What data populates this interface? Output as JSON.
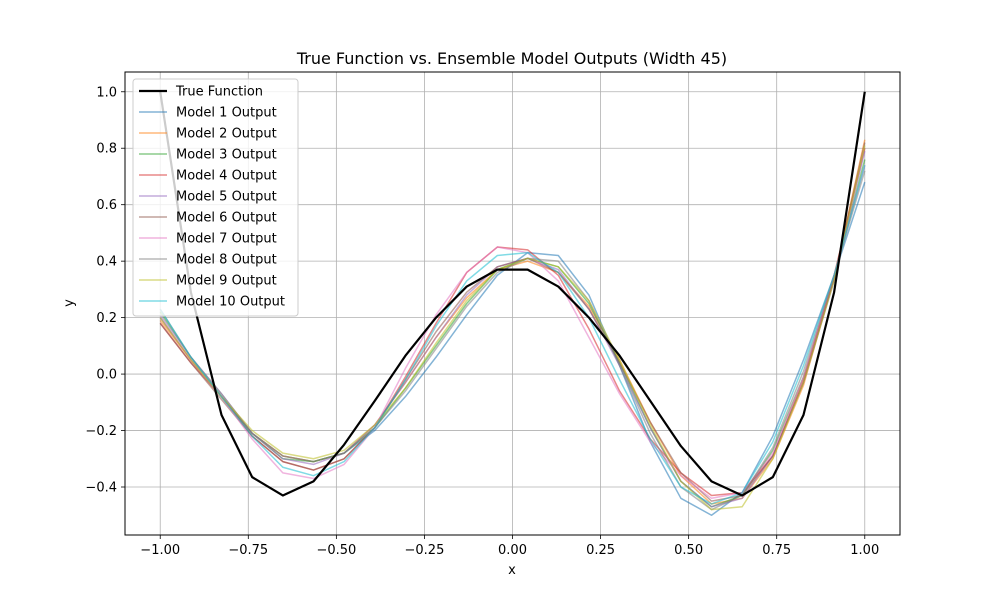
{
  "chart_data": {
    "type": "line",
    "title": "True Function vs. Ensemble Model Outputs (Width 45)",
    "xlabel": "x",
    "ylabel": "y",
    "xlim": [
      -1.1,
      1.1
    ],
    "ylim": [
      -0.57,
      1.07
    ],
    "xticks": [
      -1.0,
      -0.75,
      -0.5,
      -0.25,
      0.0,
      0.25,
      0.5,
      0.75,
      1.0
    ],
    "xtick_labels": [
      "−1.00",
      "−0.75",
      "−0.50",
      "−0.25",
      "0.00",
      "0.25",
      "0.50",
      "0.75",
      "1.00"
    ],
    "yticks": [
      -0.4,
      -0.2,
      0.0,
      0.2,
      0.4,
      0.6,
      0.8,
      1.0
    ],
    "ytick_labels": [
      "−0.4",
      "−0.2",
      "0.0",
      "0.2",
      "0.4",
      "0.6",
      "0.8",
      "1.0"
    ],
    "grid": true,
    "legend_position": "upper-left",
    "x": [
      -1.0,
      -0.913,
      -0.826,
      -0.739,
      -0.652,
      -0.565,
      -0.478,
      -0.391,
      -0.304,
      -0.217,
      -0.13,
      -0.043,
      0.043,
      0.13,
      0.217,
      0.304,
      0.391,
      0.478,
      0.565,
      0.652,
      0.739,
      0.826,
      0.913,
      1.0
    ],
    "series": [
      {
        "name": "True Function",
        "color": "#000000",
        "width": 2.2,
        "alpha": 1.0,
        "values": [
          1.0,
          0.29,
          -0.145,
          -0.365,
          -0.43,
          -0.38,
          -0.25,
          -0.095,
          0.065,
          0.2,
          0.31,
          0.37,
          0.37,
          0.31,
          0.2,
          0.065,
          -0.095,
          -0.255,
          -0.38,
          -0.43,
          -0.365,
          -0.145,
          0.29,
          1.0
        ]
      },
      {
        "name": "Model 1 Output",
        "color": "#1f77b4",
        "width": 1.5,
        "alpha": 0.55,
        "values": [
          0.2,
          0.05,
          -0.08,
          -0.21,
          -0.29,
          -0.31,
          -0.28,
          -0.2,
          -0.08,
          0.06,
          0.21,
          0.35,
          0.43,
          0.42,
          0.28,
          0.03,
          -0.24,
          -0.44,
          -0.5,
          -0.42,
          -0.22,
          0.05,
          0.35,
          0.68
        ]
      },
      {
        "name": "Model 2 Output",
        "color": "#ff7f0e",
        "width": 1.5,
        "alpha": 0.55,
        "values": [
          0.19,
          0.05,
          -0.08,
          -0.21,
          -0.29,
          -0.31,
          -0.28,
          -0.18,
          -0.03,
          0.13,
          0.27,
          0.37,
          0.4,
          0.36,
          0.24,
          0.05,
          -0.17,
          -0.36,
          -0.46,
          -0.44,
          -0.3,
          -0.04,
          0.34,
          0.83
        ]
      },
      {
        "name": "Model 3 Output",
        "color": "#2ca02c",
        "width": 1.5,
        "alpha": 0.55,
        "values": [
          0.22,
          0.06,
          -0.08,
          -0.21,
          -0.3,
          -0.31,
          -0.28,
          -0.19,
          -0.05,
          0.1,
          0.25,
          0.37,
          0.41,
          0.38,
          0.25,
          0.04,
          -0.19,
          -0.38,
          -0.47,
          -0.43,
          -0.27,
          -0.01,
          0.34,
          0.76
        ]
      },
      {
        "name": "Model 4 Output",
        "color": "#d62728",
        "width": 1.5,
        "alpha": 0.55,
        "values": [
          0.18,
          0.04,
          -0.08,
          -0.22,
          -0.31,
          -0.34,
          -0.3,
          -0.19,
          -0.01,
          0.18,
          0.36,
          0.45,
          0.44,
          0.35,
          0.16,
          -0.06,
          -0.23,
          -0.35,
          -0.43,
          -0.42,
          -0.29,
          -0.02,
          0.35,
          0.8
        ]
      },
      {
        "name": "Model 5 Output",
        "color": "#9467bd",
        "width": 1.5,
        "alpha": 0.55,
        "values": [
          0.21,
          0.06,
          -0.07,
          -0.21,
          -0.3,
          -0.32,
          -0.28,
          -0.18,
          -0.03,
          0.13,
          0.28,
          0.38,
          0.41,
          0.37,
          0.23,
          0.03,
          -0.19,
          -0.38,
          -0.47,
          -0.44,
          -0.29,
          -0.03,
          0.33,
          0.79
        ]
      },
      {
        "name": "Model 6 Output",
        "color": "#8c564b",
        "width": 1.5,
        "alpha": 0.55,
        "values": [
          0.18,
          0.04,
          -0.09,
          -0.22,
          -0.31,
          -0.34,
          -0.3,
          -0.19,
          -0.02,
          0.15,
          0.29,
          0.38,
          0.41,
          0.36,
          0.23,
          0.04,
          -0.17,
          -0.35,
          -0.45,
          -0.43,
          -0.29,
          -0.03,
          0.34,
          0.82
        ]
      },
      {
        "name": "Model 7 Output",
        "color": "#e377c2",
        "width": 1.5,
        "alpha": 0.55,
        "values": [
          0.2,
          0.05,
          -0.08,
          -0.23,
          -0.35,
          -0.37,
          -0.32,
          -0.19,
          0.02,
          0.21,
          0.36,
          0.45,
          0.43,
          0.33,
          0.13,
          -0.07,
          -0.24,
          -0.36,
          -0.44,
          -0.42,
          -0.28,
          -0.01,
          0.35,
          0.74
        ]
      },
      {
        "name": "Model 8 Output",
        "color": "#7f7f7f",
        "width": 1.5,
        "alpha": 0.55,
        "values": [
          0.23,
          0.06,
          -0.07,
          -0.21,
          -0.29,
          -0.31,
          -0.28,
          -0.19,
          -0.06,
          0.09,
          0.24,
          0.36,
          0.41,
          0.4,
          0.26,
          0.03,
          -0.21,
          -0.4,
          -0.48,
          -0.43,
          -0.26,
          0.01,
          0.35,
          0.72
        ]
      },
      {
        "name": "Model 9 Output",
        "color": "#bcbd22",
        "width": 1.5,
        "alpha": 0.55,
        "values": [
          0.2,
          0.05,
          -0.08,
          -0.2,
          -0.28,
          -0.3,
          -0.27,
          -0.18,
          -0.05,
          0.11,
          0.26,
          0.37,
          0.41,
          0.38,
          0.26,
          0.05,
          -0.18,
          -0.38,
          -0.48,
          -0.47,
          -0.3,
          -0.03,
          0.33,
          0.81
        ]
      },
      {
        "name": "Model 10 Output",
        "color": "#17becf",
        "width": 1.5,
        "alpha": 0.55,
        "values": [
          0.23,
          0.06,
          -0.08,
          -0.22,
          -0.33,
          -0.36,
          -0.31,
          -0.19,
          -0.02,
          0.17,
          0.33,
          0.42,
          0.43,
          0.36,
          0.2,
          -0.02,
          -0.23,
          -0.4,
          -0.46,
          -0.42,
          -0.24,
          0.03,
          0.35,
          0.74
        ]
      }
    ]
  }
}
